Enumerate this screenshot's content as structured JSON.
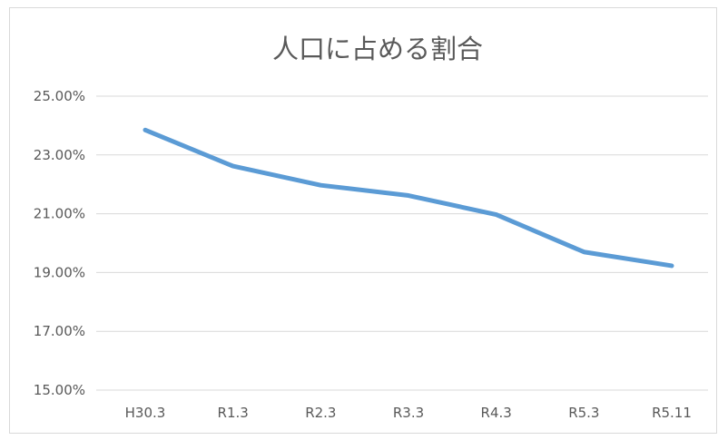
{
  "chart_data": {
    "type": "line",
    "title": "人口に占める割合",
    "categories": [
      "H30.3",
      "R1.3",
      "R2.3",
      "R3.3",
      "R4.3",
      "R5.3",
      "R5.11"
    ],
    "series": [
      {
        "values": [
          23.85,
          22.62,
          21.97,
          21.62,
          20.97,
          19.7,
          19.23
        ],
        "color": "#5b9bd5"
      }
    ],
    "ylim": [
      15,
      25
    ],
    "yticks": [
      "15.00%",
      "17.00%",
      "19.00%",
      "21.00%",
      "23.00%",
      "25.00%"
    ],
    "grid": true,
    "gridColor": "#d9d9d9"
  }
}
